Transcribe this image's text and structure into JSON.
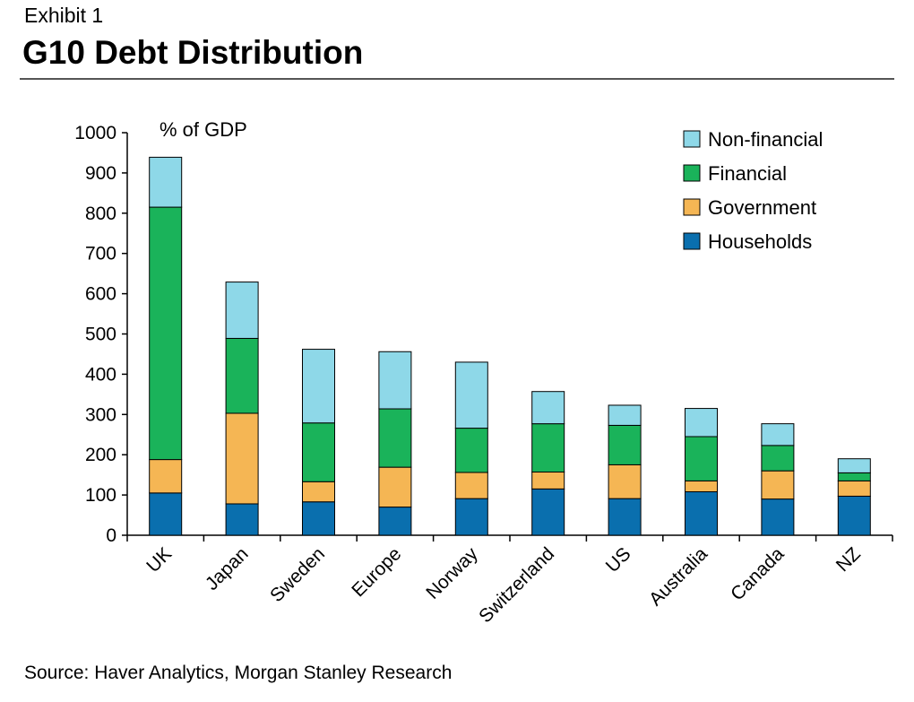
{
  "header": {
    "exhibit": "Exhibit 1",
    "title": "G10 Debt Distribution"
  },
  "footer": {
    "source": "Source: Haver Analytics, Morgan Stanley Research"
  },
  "chart_data": {
    "type": "bar",
    "stacked": true,
    "title": "G10 Debt Distribution",
    "unit_label": "% of GDP",
    "xlabel": "",
    "ylabel": "",
    "ylim": [
      0,
      1000
    ],
    "yticks": [
      0,
      100,
      200,
      300,
      400,
      500,
      600,
      700,
      800,
      900,
      1000
    ],
    "grid": false,
    "legend_position": "top-right",
    "categories": [
      "UK",
      "Japan",
      "Sweden",
      "Europe",
      "Norway",
      "Switzerland",
      "US",
      "Australia",
      "Canada",
      "NZ"
    ],
    "series": [
      {
        "name": "Households",
        "color": "#0a6fae",
        "values": [
          105,
          78,
          83,
          70,
          91,
          115,
          91,
          108,
          90,
          97
        ]
      },
      {
        "name": "Government",
        "color": "#f5b654",
        "values": [
          83,
          225,
          50,
          99,
          65,
          42,
          84,
          27,
          70,
          38
        ]
      },
      {
        "name": "Financial",
        "color": "#1ab35a",
        "values": [
          627,
          186,
          146,
          145,
          110,
          120,
          98,
          110,
          63,
          20
        ]
      },
      {
        "name": "Non-financial",
        "color": "#8ed8e8",
        "values": [
          124,
          140,
          183,
          142,
          164,
          80,
          50,
          70,
          54,
          35
        ]
      }
    ],
    "legend_order": [
      "Non-financial",
      "Financial",
      "Government",
      "Households"
    ]
  }
}
